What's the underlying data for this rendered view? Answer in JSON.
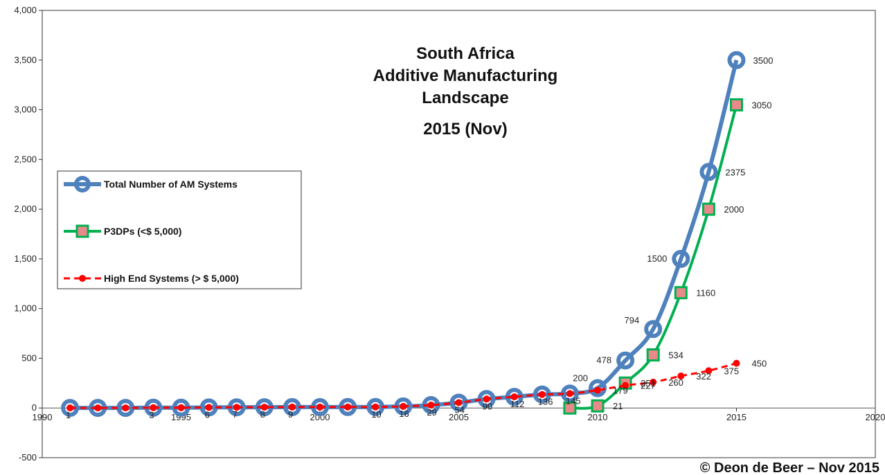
{
  "chart_data": {
    "type": "line",
    "title": [
      "South Africa",
      "Additive Manufacturing",
      "Landscape",
      "2015 (Nov)"
    ],
    "xlim": [
      1990,
      2020
    ],
    "ylim": [
      -500,
      4000
    ],
    "x_ticks": [
      "1990",
      "1995",
      "2000",
      "2005",
      "2010",
      "2015",
      "2020"
    ],
    "y_ticks": [
      "-500",
      "0",
      "500",
      "1,000",
      "1,500",
      "2,000",
      "2,500",
      "3,000",
      "3,500",
      "4,000"
    ],
    "grid": false,
    "legend_placement": "left",
    "series": [
      {
        "name": "Total Number of AM Systems",
        "color": "#4f81bd",
        "marker": "circle",
        "x": [
          1991,
          1992,
          1993,
          1994,
          1995,
          1996,
          1997,
          1998,
          1999,
          2000,
          2001,
          2002,
          2003,
          2004,
          2005,
          2006,
          2007,
          2008,
          2009,
          2010,
          2011,
          2012,
          2013,
          2014,
          2015
        ],
        "values": [
          1,
          1,
          1,
          3,
          3,
          6,
          7,
          8,
          9,
          9,
          10,
          10,
          16,
          29,
          54,
          90,
          112,
          136,
          145,
          200,
          478,
          794,
          1500,
          2375,
          3500
        ],
        "point_labels": [
          "1",
          "",
          "",
          "3",
          "",
          "6",
          "7",
          "8",
          "9",
          "",
          "",
          "10",
          "16",
          "29",
          "54",
          "90",
          "112",
          "136",
          "145",
          "200",
          "478",
          "794",
          "1500",
          "2375",
          "3500"
        ]
      },
      {
        "name": "P3DPs (<$ 5,000)",
        "color": "#00b050",
        "marker": "square",
        "x": [
          2009,
          2010,
          2011,
          2012,
          2013,
          2014,
          2015
        ],
        "values": [
          0,
          21,
          251,
          534,
          1160,
          2000,
          3050
        ],
        "point_labels": [
          "",
          "21",
          "251",
          "534",
          "1160",
          "2000",
          "3050"
        ]
      },
      {
        "name": "High End Systems (> $ 5,000)",
        "color": "#ff0000",
        "marker": "dot",
        "dashed": true,
        "x": [
          1991,
          1992,
          1993,
          1994,
          1995,
          1996,
          1997,
          1998,
          1999,
          2000,
          2001,
          2002,
          2003,
          2004,
          2005,
          2006,
          2007,
          2008,
          2009,
          2010,
          2011,
          2012,
          2013,
          2014,
          2015
        ],
        "values": [
          1,
          1,
          1,
          3,
          3,
          6,
          7,
          8,
          9,
          9,
          10,
          10,
          16,
          29,
          54,
          90,
          112,
          136,
          145,
          179,
          227,
          260,
          322,
          375,
          450
        ],
        "point_labels": [
          "",
          "",
          "",
          "",
          "",
          "",
          "",
          "",
          "",
          "",
          "",
          "",
          "",
          "",
          "",
          "",
          "",
          "",
          "",
          "179",
          "227",
          "260",
          "322",
          "375",
          "450"
        ]
      }
    ]
  },
  "copyright": "© Deon de Beer – Nov 2015"
}
